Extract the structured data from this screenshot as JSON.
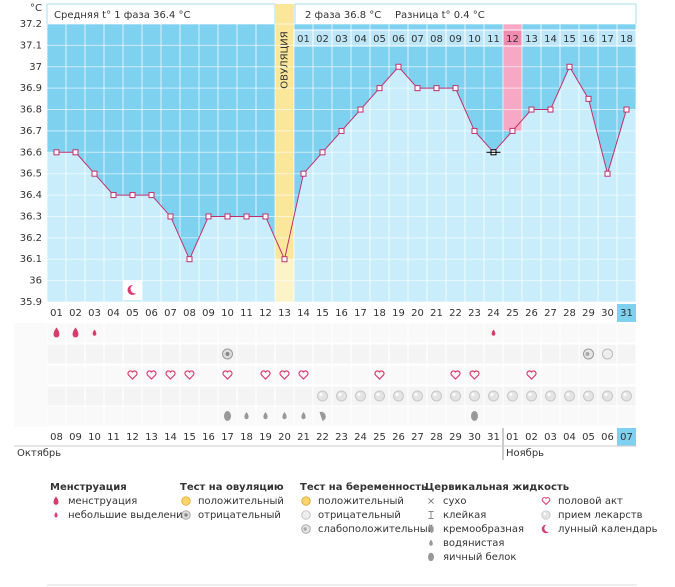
{
  "chart_data": {
    "type": "line",
    "axis_unit": "°C",
    "header": {
      "phase1": "Средняя t° 1 фаза 36.4 °C",
      "phase2": "2 фаза 36.8 °C",
      "difference": "Разница t° 0.4 °C"
    },
    "ovulation_label": "ОВУЛЯЦИЯ",
    "ovulation_day": 13,
    "marked_day": 25,
    "current_day": 31,
    "categories": [
      "01",
      "02",
      "03",
      "04",
      "05",
      "06",
      "07",
      "08",
      "09",
      "10",
      "11",
      "12",
      "13",
      "14",
      "15",
      "16",
      "17",
      "18",
      "19",
      "20",
      "21",
      "22",
      "23",
      "24",
      "25",
      "26",
      "27",
      "28",
      "29",
      "30",
      "31"
    ],
    "values": [
      36.6,
      36.6,
      36.5,
      36.4,
      36.4,
      36.4,
      36.3,
      36.1,
      36.3,
      36.3,
      36.3,
      36.3,
      36.1,
      36.5,
      36.6,
      36.7,
      36.8,
      36.9,
      37,
      36.9,
      36.9,
      36.9,
      36.7,
      36.6,
      36.7,
      36.8,
      36.8,
      37,
      36.85,
      36.5,
      36.8
    ],
    "color": "#c2306c",
    "ylim": [
      35.9,
      37.2
    ],
    "yticks": [
      35.9,
      36,
      36.1,
      36.2,
      36.3,
      36.4,
      36.5,
      36.6,
      36.7,
      36.8,
      36.9,
      37,
      37.1,
      37.2
    ],
    "grid": true,
    "phase2_start": 14,
    "phase2_days": [
      "01",
      "02",
      "03",
      "04",
      "05",
      "06",
      "07",
      "08",
      "09",
      "10",
      "11",
      "12",
      "13",
      "14",
      "15",
      "16",
      "17",
      "18"
    ],
    "dates": [
      "08",
      "09",
      "10",
      "11",
      "12",
      "13",
      "14",
      "15",
      "16",
      "17",
      "18",
      "19",
      "20",
      "21",
      "22",
      "23",
      "24",
      "25",
      "26",
      "27",
      "28",
      "29",
      "30",
      "31",
      "01",
      "02",
      "03",
      "04",
      "05",
      "06",
      "07"
    ],
    "weekend": [
      4,
      5,
      11,
      12,
      18,
      19,
      25,
      26
    ],
    "months": [
      {
        "label": "Октябрь",
        "start": 0
      },
      {
        "label": "Ноябрь",
        "start": 24
      }
    ],
    "symbols": {
      "menstruation": [
        1,
        2
      ],
      "spotting": [
        3,
        24
      ],
      "ovulation_negative": [
        10
      ],
      "pregnancy_weak": [
        29
      ],
      "pregnancy_negative": [
        30
      ],
      "intercourse": [
        5,
        6,
        7,
        8,
        10,
        12,
        13,
        14,
        18,
        22,
        23,
        26
      ],
      "medication": [
        15,
        16,
        17,
        18,
        19,
        20,
        21,
        22,
        23,
        24,
        25,
        26,
        27,
        28,
        29,
        30,
        31
      ],
      "egg_white": [
        10,
        23
      ],
      "watery": [
        11,
        12,
        13,
        14
      ],
      "creamy": [
        15
      ],
      "lunar": [
        5
      ]
    }
  },
  "legend": [
    {
      "title": "Менструация",
      "items": [
        {
          "icon": "menstruation",
          "label": "менструация"
        },
        {
          "icon": "spotting",
          "label": "небольшие выделения"
        }
      ]
    },
    {
      "title": "Тест на овуляцию",
      "items": [
        {
          "icon": "ovulation_positive",
          "label": "положительный"
        },
        {
          "icon": "ovulation_negative",
          "label": "отрицательный"
        }
      ]
    },
    {
      "title": "Тест на беременность",
      "items": [
        {
          "icon": "pregnancy_positive",
          "label": "положительный"
        },
        {
          "icon": "pregnancy_negative",
          "label": "отрицательный"
        },
        {
          "icon": "pregnancy_weak",
          "label": "слабоположительный"
        }
      ]
    },
    {
      "title": "Цервикальная жидкость",
      "items": [
        {
          "icon": "dry",
          "label": "сухо"
        },
        {
          "icon": "sticky",
          "label": "клейкая"
        },
        {
          "icon": "creamy",
          "label": "кремообразная"
        },
        {
          "icon": "watery",
          "label": "водянистая"
        },
        {
          "icon": "egg_white",
          "label": "яичный белок"
        }
      ]
    },
    {
      "items": [
        {
          "icon": "intercourse",
          "label": "половой акт"
        },
        {
          "icon": "medication",
          "label": "прием лекарств"
        },
        {
          "icon": "lunar",
          "label": "лунный календарь"
        }
      ]
    }
  ]
}
